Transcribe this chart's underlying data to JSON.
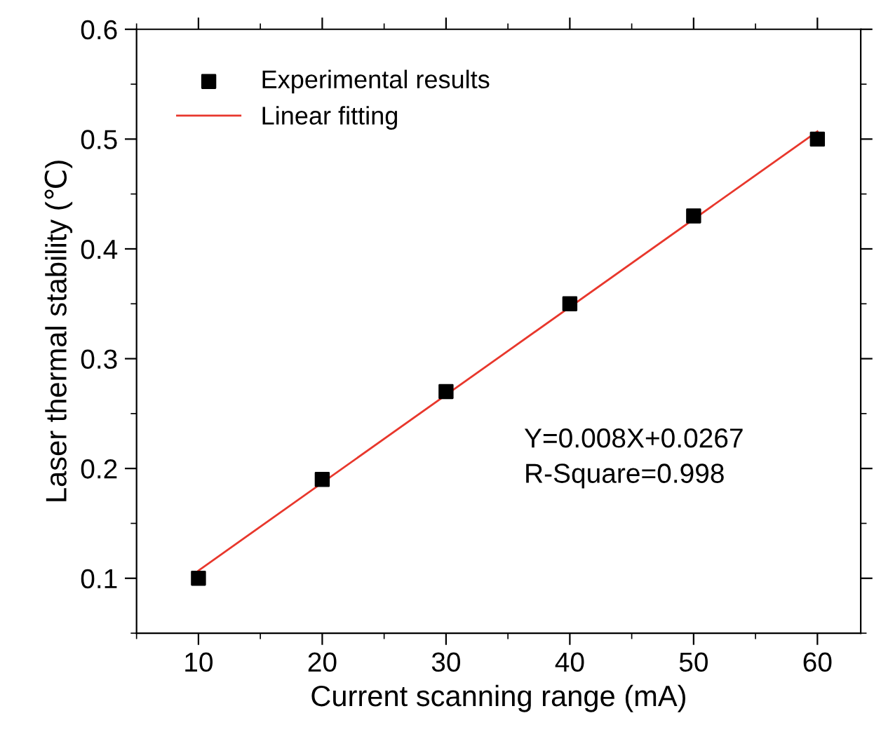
{
  "chart_data": {
    "type": "scatter",
    "xlabel": "Current scanning range (mA)",
    "ylabel": "Laser thermal stability (℃)",
    "series": [
      {
        "name": "Experimental results",
        "color": "#000000",
        "marker": "square",
        "x": [
          10,
          20,
          30,
          40,
          50,
          60
        ],
        "values": [
          0.1,
          0.19,
          0.27,
          0.35,
          0.43,
          0.5
        ]
      },
      {
        "name": "Linear fitting",
        "type": "line",
        "color": "#e8372c",
        "marker": "none",
        "line_style": "solid",
        "x": [
          10,
          60
        ],
        "values": [
          0.107,
          0.507
        ]
      }
    ],
    "annotations": [
      "Y=0.008X+0.0267\nR-Square=0.998"
    ],
    "xlim": [
      5,
      63.5
    ],
    "ylim": [
      0.05,
      0.6
    ],
    "xticks": [
      10,
      20,
      30,
      40,
      50,
      60
    ],
    "yticks": [
      0.1,
      0.2,
      0.3,
      0.4,
      0.5,
      0.6
    ],
    "grid": false,
    "legend": "top left"
  }
}
